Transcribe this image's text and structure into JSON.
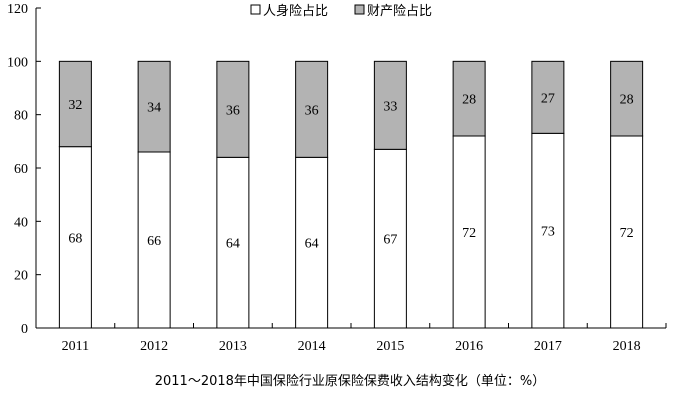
{
  "caption": "2011～2018年中国保险行业原保险保费收入结构变化（单位：%）",
  "chart_data": {
    "type": "bar",
    "stacked": true,
    "categories": [
      "2011",
      "2012",
      "2013",
      "2014",
      "2015",
      "2016",
      "2017",
      "2018"
    ],
    "series": [
      {
        "name": "人身险占比",
        "values": [
          68,
          66,
          64,
          64,
          67,
          72,
          73,
          72
        ],
        "color": "#ffffff"
      },
      {
        "name": "财产险占比",
        "values": [
          32,
          34,
          36,
          36,
          33,
          28,
          27,
          28
        ],
        "color": "#b3b3b3"
      }
    ],
    "ylim": [
      0,
      120
    ],
    "yticks": [
      0,
      20,
      40,
      60,
      80,
      100,
      120
    ],
    "legend_position": "top-center",
    "grid": false
  }
}
